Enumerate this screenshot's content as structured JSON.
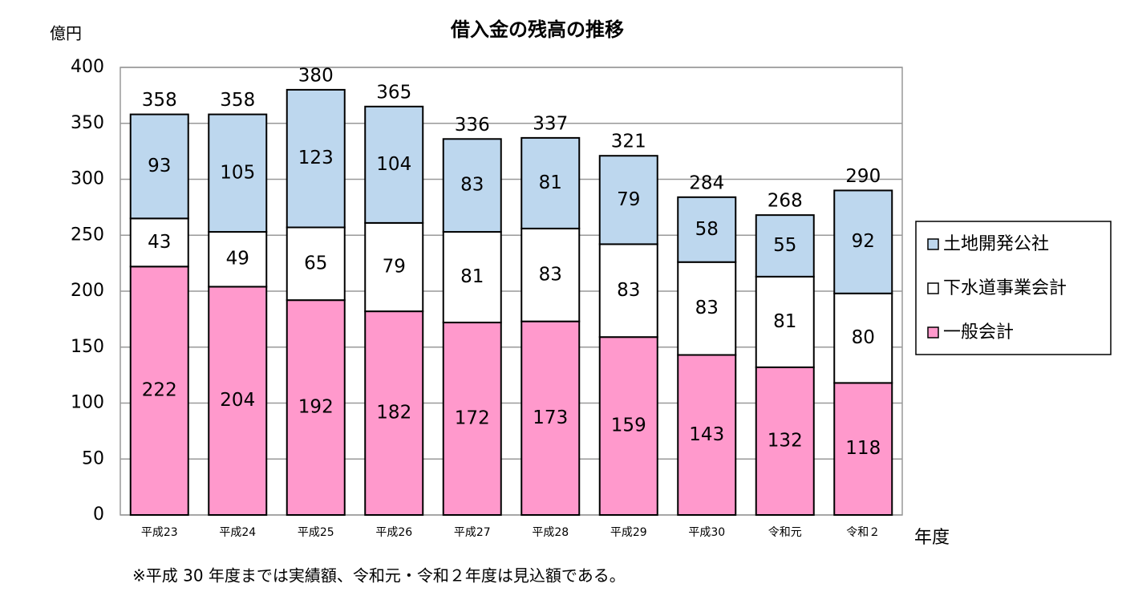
{
  "chart_data": {
    "type": "stacked_bar",
    "title": "借入金の残高の推移",
    "y_unit": "億円",
    "x_label": "年度",
    "note": "※平成 30 年度までは実績額、令和元・令和２年度は見込額である。",
    "categories": [
      "平成23",
      "平成24",
      "平成25",
      "平成26",
      "平成27",
      "平成28",
      "平成29",
      "平成30",
      "令和元",
      "令和２"
    ],
    "series": [
      {
        "name": "一般会計",
        "color": "#ff99cc",
        "values": [
          222,
          204,
          192,
          182,
          172,
          173,
          159,
          143,
          132,
          118
        ]
      },
      {
        "name": "下水道事業会計",
        "color": "#ffffff",
        "values": [
          43,
          49,
          65,
          79,
          81,
          83,
          83,
          83,
          81,
          80
        ]
      },
      {
        "name": "土地開発公社",
        "color": "#bdd7ee",
        "values": [
          93,
          105,
          123,
          104,
          83,
          81,
          79,
          58,
          55,
          92
        ]
      }
    ],
    "totals": [
      358,
      358,
      380,
      365,
      336,
      337,
      321,
      284,
      268,
      290
    ],
    "ylim": [
      0,
      400
    ],
    "yticks": [
      0,
      50,
      100,
      150,
      200,
      250,
      300,
      350,
      400
    ],
    "grid": true
  }
}
